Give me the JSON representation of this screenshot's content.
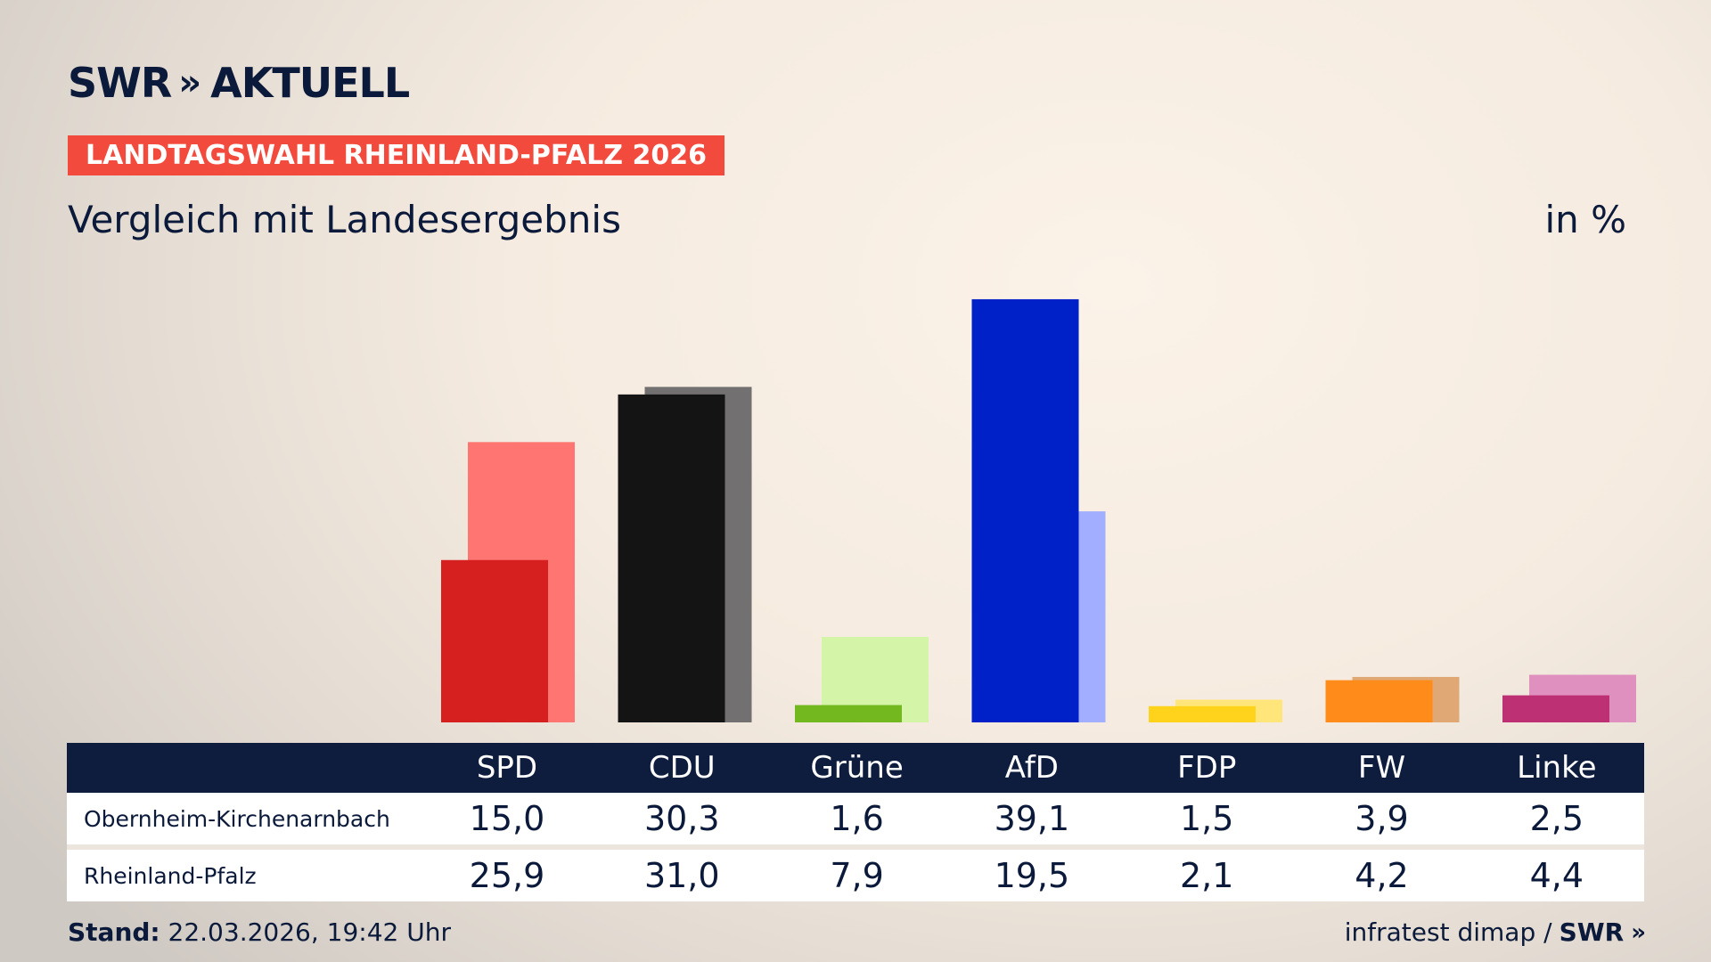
{
  "brand": {
    "logo_text": "SWR",
    "logo_chevrons": "»",
    "logo_suffix": "AKTUELL"
  },
  "header": {
    "tag": "LANDTAGSWAHL RHEINLAND-PFALZ 2026",
    "tag_color": "#f24b3e",
    "subtitle": "Vergleich mit Landesergebnis",
    "unit": "in %"
  },
  "chart_data": {
    "type": "bar",
    "categories": [
      "SPD",
      "CDU",
      "Grüne",
      "AfD",
      "FDP",
      "FW",
      "Linke"
    ],
    "series": [
      {
        "name": "Obernheim-Kirchenarnbach",
        "values": [
          15.0,
          30.3,
          1.6,
          39.1,
          1.5,
          3.9,
          2.5
        ],
        "colors": [
          "#d61f1f",
          "#141414",
          "#72b81e",
          "#0020c8",
          "#ffd21c",
          "#ff8c1a",
          "#be3074"
        ]
      },
      {
        "name": "Rheinland-Pfalz",
        "values": [
          25.9,
          31.0,
          7.9,
          19.5,
          2.1,
          4.2,
          4.4
        ],
        "colors": [
          "#ff7571",
          "#727070",
          "#d4f5a8",
          "#a2aeff",
          "#ffe57a",
          "#e0a874",
          "#e090bf"
        ]
      }
    ],
    "ylim": [
      0,
      40
    ],
    "grid": false,
    "legend": "table-below"
  },
  "table": {
    "rows": [
      {
        "label": "Obernheim-Kirchenarnbach",
        "values": [
          "15,0",
          "30,3",
          "1,6",
          "39,1",
          "1,5",
          "3,9",
          "2,5"
        ]
      },
      {
        "label": "Rheinland-Pfalz",
        "values": [
          "25,9",
          "31,0",
          "7,9",
          "19,5",
          "2,1",
          "4,2",
          "4,4"
        ]
      }
    ]
  },
  "footer": {
    "stand_label": "Stand:",
    "stand_value": "22.03.2026, 19:42 Uhr",
    "source": "infratest dimap /",
    "source_brand": "SWR",
    "source_chevrons": "»"
  }
}
